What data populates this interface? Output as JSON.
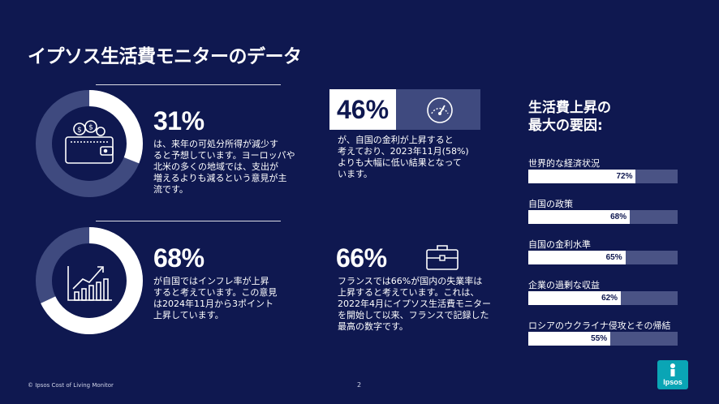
{
  "title": "イプソス生活費モニターのデータ",
  "stats": [
    {
      "pct": "31%",
      "text": [
        "は、来年の可処分所得が減少す",
        "ると予想しています。ヨーロッパや",
        "北米の多くの地域では、支出が",
        "増えるよりも減るという意見が主",
        "流です。"
      ],
      "icon": "wallet-icon",
      "ring_fraction": 0.31
    },
    {
      "pct": "68%",
      "text": [
        "が自国ではインフレ率が上昇",
        "すると考えています。この意見",
        "は2024年11月から3ポイント",
        "上昇しています。"
      ],
      "icon": "growth-chart-icon",
      "ring_fraction": 0.68
    },
    {
      "pct": "46%",
      "text": [
        "が、自国の金利が上昇すると",
        "考えており、2023年11月(58%)",
        "よりも大幅に低い結果となって",
        "います。"
      ],
      "icon": "gauge-icon"
    },
    {
      "pct": "66%",
      "text": [
        "フランスでは66%が国内の失業率は",
        "上昇すると考えています。これは、",
        "2022年4月にイプソス生活費モニター",
        "を開始して以来、フランスで記録した",
        "最高の数字です。"
      ],
      "icon": "briefcase-icon"
    }
  ],
  "factors": {
    "title_lines": [
      "生活費上昇の",
      "最大の要因:"
    ],
    "items": [
      {
        "label": "世界的な経済状況",
        "value": 72,
        "value_label": "72%"
      },
      {
        "label": "自国の政策",
        "value": 68,
        "value_label": "68%"
      },
      {
        "label": "自国の金利水準",
        "value": 65,
        "value_label": "65%"
      },
      {
        "label": "企業の過剰な収益",
        "value": 62,
        "value_label": "62%"
      },
      {
        "label": "ロシアのウクライナ侵攻とその帰結",
        "value": 55,
        "value_label": "55%"
      }
    ]
  },
  "footer": "© Ipsos Cost of Living Monitor",
  "page_number": "2",
  "logo_text": "Ipsos",
  "colors": {
    "background": "#0f1850",
    "muted": "#4a5385",
    "accent": "#0aa5b5"
  }
}
